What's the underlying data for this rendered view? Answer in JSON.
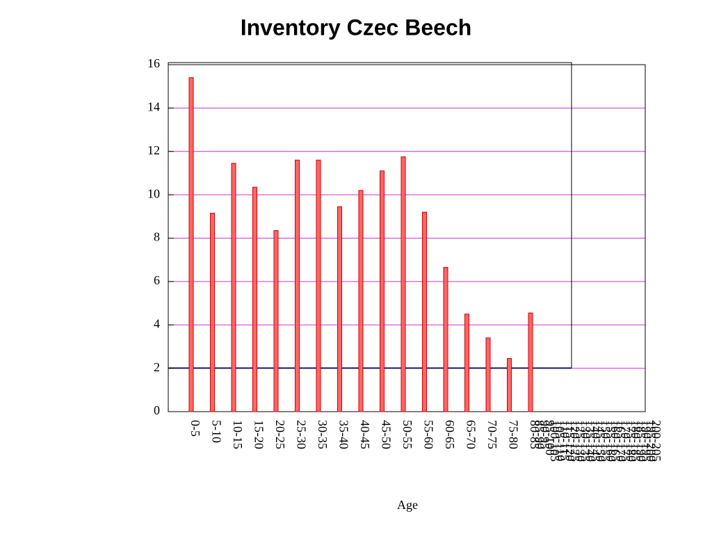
{
  "chart_data": {
    "type": "bar",
    "title": "Inventory Czec Beech",
    "x_label": "Age",
    "categories": [
      "0-5",
      "5-10",
      "10-15",
      "15-20",
      "20-25",
      "25-30",
      "30-35",
      "35-40",
      "40-45",
      "45-50",
      "50-55",
      "55-60",
      "60-65",
      "65-70",
      "70-75",
      "75-80",
      "80-85",
      "85-90",
      "90-95",
      "95-100",
      "100-105",
      "105-110",
      "110-115",
      "115-120",
      "120-125",
      "125-130",
      "130-135",
      "135-140",
      "140-145",
      "145-150",
      "150-155",
      "155-160",
      "160-165",
      "165-170",
      "170-175",
      "175-180",
      "180-185",
      "185-190",
      "190-195",
      "195-200",
      "200-205"
    ],
    "values": [
      15.4,
      9.15,
      11.45,
      10.35,
      8.35,
      11.6,
      11.6,
      9.45,
      10.2,
      11.1,
      11.75,
      9.2,
      6.65,
      4.5,
      3.4,
      2.45,
      4.55,
      0,
      0,
      0,
      0,
      0,
      0,
      0,
      0,
      0,
      0,
      0,
      0,
      0,
      0,
      0,
      0,
      0,
      0,
      0,
      0,
      0,
      0,
      0,
      0
    ],
    "color": "#ff6666",
    "ylim": [
      0,
      16
    ],
    "yticks": [
      0,
      2,
      4,
      6,
      8,
      10,
      12,
      14,
      16
    ],
    "grid": true
  }
}
